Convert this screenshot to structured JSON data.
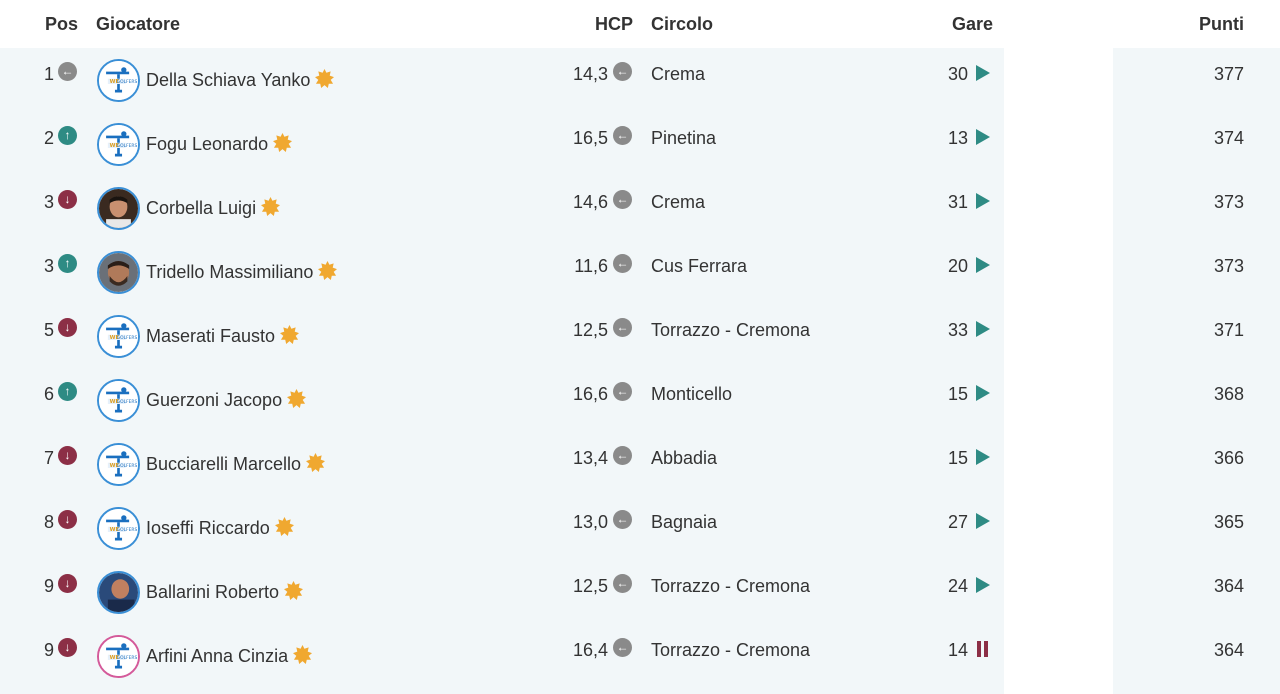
{
  "headers": {
    "pos": "Pos",
    "player": "Giocatore",
    "hcp": "HCP",
    "club": "Circolo",
    "gare": "Gare",
    "punti": "Punti"
  },
  "colors": {
    "trend_same": "#8a8a8a",
    "trend_up": "#2e8b84",
    "trend_down": "#8c2f46",
    "play": "#2e8b84",
    "pause": "#8c2f46",
    "star": "#f0a830",
    "row_band": "#f2f7f9"
  },
  "rows": [
    {
      "pos": "1",
      "trend": "same",
      "avatar": "logo",
      "name": "Della Schiava Yanko",
      "hcp": "14,3",
      "club": "Crema",
      "gare": "30",
      "status": "play",
      "punti": "377"
    },
    {
      "pos": "2",
      "trend": "up",
      "avatar": "logo",
      "name": "Fogu Leonardo",
      "hcp": "16,5",
      "club": "Pinetina",
      "gare": "13",
      "status": "play",
      "punti": "374"
    },
    {
      "pos": "3",
      "trend": "down",
      "avatar": "photo-a",
      "name": "Corbella Luigi",
      "hcp": "14,6",
      "club": "Crema",
      "gare": "31",
      "status": "play",
      "punti": "373"
    },
    {
      "pos": "3",
      "trend": "up",
      "avatar": "photo-b",
      "name": "Tridello Massimiliano",
      "hcp": "11,6",
      "club": "Cus Ferrara",
      "gare": "20",
      "status": "play",
      "punti": "373"
    },
    {
      "pos": "5",
      "trend": "down",
      "avatar": "logo",
      "name": "Maserati Fausto",
      "hcp": "12,5",
      "club": "Torrazzo - Cremona",
      "gare": "33",
      "status": "play",
      "punti": "371"
    },
    {
      "pos": "6",
      "trend": "up",
      "avatar": "logo",
      "name": "Guerzoni Jacopo",
      "hcp": "16,6",
      "club": "Monticello",
      "gare": "15",
      "status": "play",
      "punti": "368"
    },
    {
      "pos": "7",
      "trend": "down",
      "avatar": "logo",
      "name": "Bucciarelli Marcello",
      "hcp": "13,4",
      "club": "Abbadia",
      "gare": "15",
      "status": "play",
      "punti": "366"
    },
    {
      "pos": "8",
      "trend": "down",
      "avatar": "logo",
      "name": "Ioseffi Riccardo",
      "hcp": "13,0",
      "club": "Bagnaia",
      "gare": "27",
      "status": "play",
      "punti": "365"
    },
    {
      "pos": "9",
      "trend": "down",
      "avatar": "photo-c",
      "name": "Ballarini Roberto",
      "hcp": "12,5",
      "club": "Torrazzo - Cremona",
      "gare": "24",
      "status": "play",
      "punti": "364"
    },
    {
      "pos": "9",
      "trend": "down",
      "avatar": "logo-pink",
      "name": "Arfini Anna Cinzia",
      "hcp": "16,4",
      "club": "Torrazzo - Cremona",
      "gare": "14",
      "status": "pause",
      "punti": "364"
    }
  ]
}
